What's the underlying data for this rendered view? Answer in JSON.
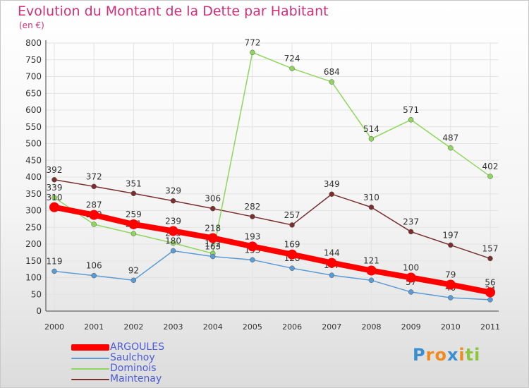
{
  "chart_data": {
    "type": "line",
    "title": "Evolution du Montant de la Dette par Habitant",
    "subtitle": "(en €)",
    "x": [
      "2000",
      "2001",
      "2002",
      "2003",
      "2004",
      "2005",
      "2006",
      "2007",
      "2008",
      "2009",
      "2010",
      "2011"
    ],
    "yticks": [
      0,
      50,
      100,
      150,
      200,
      250,
      300,
      350,
      400,
      450,
      500,
      550,
      600,
      650,
      700,
      750,
      800
    ],
    "ylim": [
      0,
      800
    ],
    "grid": true,
    "legend_position": "bottom-left",
    "series": [
      {
        "name": "ARGOULES",
        "color": "#ff0000",
        "values": [
          310,
          287,
          259,
          239,
          218,
          193,
          169,
          144,
          121,
          100,
          79,
          56
        ]
      },
      {
        "name": "Saulchoy",
        "color": "#5a9bd5",
        "values": [
          119,
          106,
          92,
          180,
          163,
          153,
          128,
          107,
          92,
          57,
          40,
          34
        ]
      },
      {
        "name": "Dominois",
        "color": "#8fd65c",
        "values": [
          339,
          259,
          231,
          203,
          172,
          772,
          724,
          684,
          514,
          571,
          487,
          402
        ]
      },
      {
        "name": "Maintenay",
        "color": "#7a2f2f",
        "values": [
          392,
          372,
          351,
          329,
          306,
          282,
          257,
          349,
          310,
          237,
          197,
          157
        ]
      }
    ]
  },
  "legend_text_color": "#4a5bd8",
  "brand": {
    "letters": [
      "P",
      "r",
      "o",
      "x",
      "i",
      "t",
      "i"
    ],
    "colors": [
      "#3a8fd0",
      "#f08a1e",
      "#f08a1e",
      "#3a8fd0",
      "#f08a1e",
      "#8cc63f",
      "#8cc63f"
    ]
  }
}
